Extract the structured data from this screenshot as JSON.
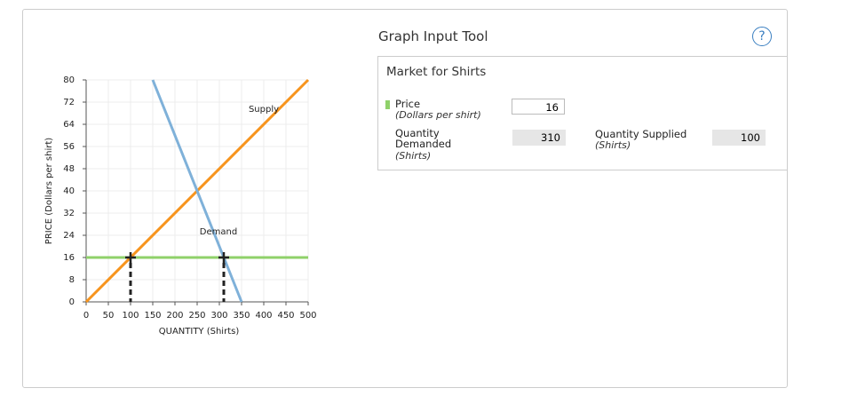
{
  "chart_data": {
    "type": "line",
    "x_label": "QUANTITY (Shirts)",
    "y_label": "PRICE (Dollars per shirt)",
    "xlim": [
      0,
      500
    ],
    "ylim": [
      0,
      80
    ],
    "xticks": [
      0,
      50,
      100,
      150,
      200,
      250,
      300,
      350,
      400,
      450,
      500
    ],
    "yticks": [
      0,
      8,
      16,
      24,
      32,
      40,
      48,
      56,
      64,
      72,
      80
    ],
    "grid": true,
    "series": [
      {
        "name": "Supply",
        "color": "#f7941d",
        "x": [
          0,
          500
        ],
        "values": [
          0,
          80
        ]
      },
      {
        "name": "Demand",
        "color": "#7fb1d9",
        "x": [
          150,
          350
        ],
        "values": [
          80,
          0
        ]
      }
    ],
    "price_line_color": "#8fd16a"
  },
  "tool": {
    "title": "Graph Input Tool",
    "help": "?",
    "panel_title": "Market for Shirts",
    "price": {
      "label": "Price",
      "unit": "(Dollars per shirt)",
      "value": 16
    },
    "quantity_demanded": {
      "label": "Quantity Demanded",
      "unit": "(Shirts)",
      "value": 310
    },
    "quantity_supplied": {
      "label": "Quantity Supplied",
      "unit": "(Shirts)",
      "value": 100
    }
  }
}
